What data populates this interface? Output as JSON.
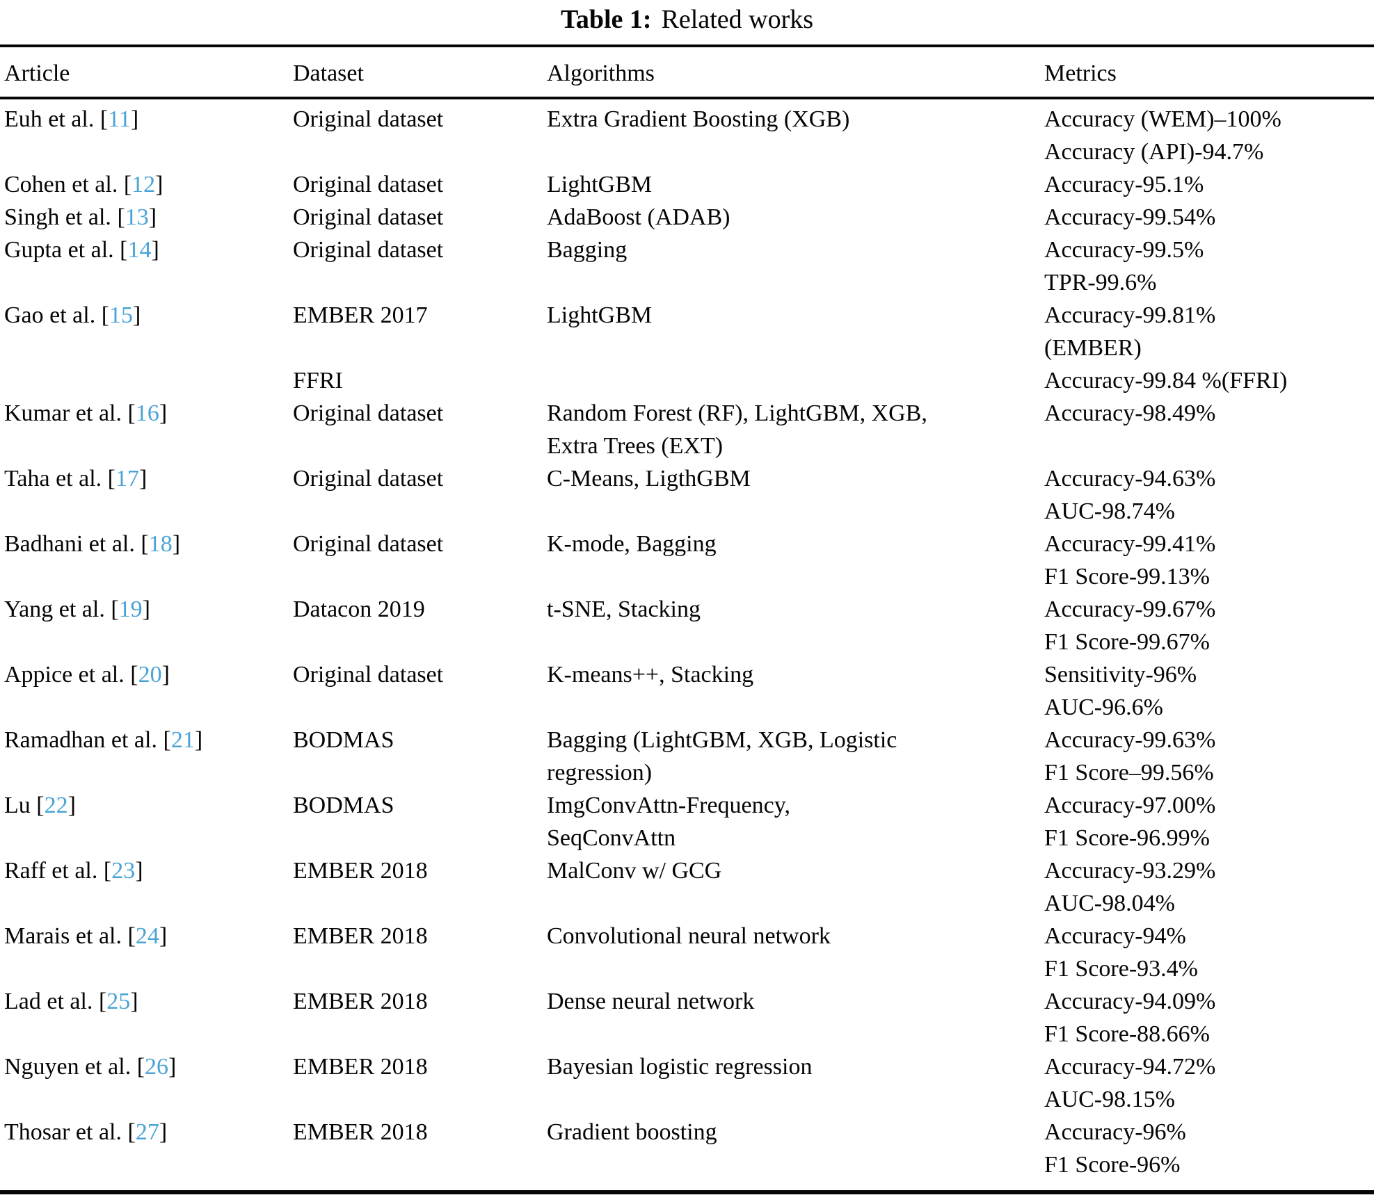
{
  "title": {
    "label": "Table 1:",
    "text": "Related works"
  },
  "columns": [
    "Article",
    "Dataset",
    "Algorithms",
    "Metrics"
  ],
  "citation": {
    "open": " [",
    "close": "]"
  },
  "accent_color": "#4aa3d6",
  "rows": [
    {
      "article": {
        "name": "Euh et al.",
        "ref": "11"
      },
      "dataset": [
        "Original dataset"
      ],
      "algorithms": [
        "Extra Gradient Boosting (XGB)"
      ],
      "metrics": [
        "Accuracy (WEM)–100%",
        "Accuracy (API)-94.7%"
      ]
    },
    {
      "article": {
        "name": "Cohen et al.",
        "ref": "12"
      },
      "dataset": [
        "Original dataset"
      ],
      "algorithms": [
        "LightGBM"
      ],
      "metrics": [
        "Accuracy-95.1%"
      ]
    },
    {
      "article": {
        "name": "Singh et al.",
        "ref": "13"
      },
      "dataset": [
        "Original dataset"
      ],
      "algorithms": [
        "AdaBoost (ADAB)"
      ],
      "metrics": [
        "Accuracy-99.54%"
      ]
    },
    {
      "article": {
        "name": "Gupta et al.",
        "ref": "14"
      },
      "dataset": [
        "Original dataset"
      ],
      "algorithms": [
        "Bagging"
      ],
      "metrics": [
        "Accuracy-99.5%",
        "TPR-99.6%"
      ]
    },
    {
      "article": {
        "name": "Gao et al.",
        "ref": "15"
      },
      "dataset": [
        "EMBER 2017",
        "",
        "FFRI"
      ],
      "algorithms": [
        "LightGBM"
      ],
      "metrics": [
        "Accuracy-99.81%",
        "(EMBER)",
        "Accuracy-99.84 %(FFRI)"
      ]
    },
    {
      "article": {
        "name": "Kumar et al.",
        "ref": "16"
      },
      "dataset": [
        "Original dataset"
      ],
      "algorithms": [
        "Random Forest (RF), LightGBM, XGB,",
        "Extra Trees (EXT)"
      ],
      "metrics": [
        "Accuracy-98.49%"
      ]
    },
    {
      "article": {
        "name": "Taha et al.",
        "ref": "17"
      },
      "dataset": [
        "Original dataset"
      ],
      "algorithms": [
        "C-Means, LigthGBM"
      ],
      "metrics": [
        "Accuracy-94.63%",
        "AUC-98.74%"
      ]
    },
    {
      "article": {
        "name": "Badhani et al.",
        "ref": "18"
      },
      "dataset": [
        "Original dataset"
      ],
      "algorithms": [
        "K-mode, Bagging"
      ],
      "metrics": [
        "Accuracy-99.41%",
        "F1 Score-99.13%"
      ]
    },
    {
      "article": {
        "name": "Yang et al.",
        "ref": "19"
      },
      "dataset": [
        "Datacon 2019"
      ],
      "algorithms": [
        "t-SNE, Stacking"
      ],
      "metrics": [
        "Accuracy-99.67%",
        "F1 Score-99.67%"
      ]
    },
    {
      "article": {
        "name": "Appice et al.",
        "ref": "20"
      },
      "dataset": [
        "Original dataset"
      ],
      "algorithms": [
        "K-means++, Stacking"
      ],
      "metrics": [
        "Sensitivity-96%",
        "AUC-96.6%"
      ]
    },
    {
      "article": {
        "name": "Ramadhan et al.",
        "ref": "21"
      },
      "dataset": [
        "BODMAS"
      ],
      "algorithms": [
        "Bagging (LightGBM, XGB, Logistic",
        "regression)"
      ],
      "metrics": [
        "Accuracy-99.63%",
        "F1 Score–99.56%"
      ]
    },
    {
      "article": {
        "name": "Lu",
        "ref": "22"
      },
      "dataset": [
        "BODMAS"
      ],
      "algorithms": [
        "ImgConvAttn-Frequency,",
        "SeqConvAttn"
      ],
      "metrics": [
        "Accuracy-97.00%",
        "F1 Score-96.99%"
      ]
    },
    {
      "article": {
        "name": "Raff et al.",
        "ref": "23"
      },
      "dataset": [
        "EMBER 2018"
      ],
      "algorithms": [
        "MalConv w/ GCG"
      ],
      "metrics": [
        "Accuracy-93.29%",
        "AUC-98.04%"
      ]
    },
    {
      "article": {
        "name": "Marais et al.",
        "ref": "24"
      },
      "dataset": [
        "EMBER 2018"
      ],
      "algorithms": [
        "Convolutional neural network"
      ],
      "metrics": [
        "Accuracy-94%",
        "F1 Score-93.4%"
      ]
    },
    {
      "article": {
        "name": "Lad et al.",
        "ref": "25"
      },
      "dataset": [
        "EMBER 2018"
      ],
      "algorithms": [
        "Dense neural network"
      ],
      "metrics": [
        "Accuracy-94.09%",
        "F1 Score-88.66%"
      ]
    },
    {
      "article": {
        "name": "Nguyen et al.",
        "ref": "26"
      },
      "dataset": [
        "EMBER 2018"
      ],
      "algorithms": [
        "Bayesian logistic regression"
      ],
      "metrics": [
        "Accuracy-94.72%",
        "AUC-98.15%"
      ]
    },
    {
      "article": {
        "name": "Thosar et al.",
        "ref": "27"
      },
      "dataset": [
        "EMBER 2018"
      ],
      "algorithms": [
        "Gradient boosting"
      ],
      "metrics": [
        "Accuracy-96%",
        "F1 Score-96%"
      ]
    }
  ]
}
